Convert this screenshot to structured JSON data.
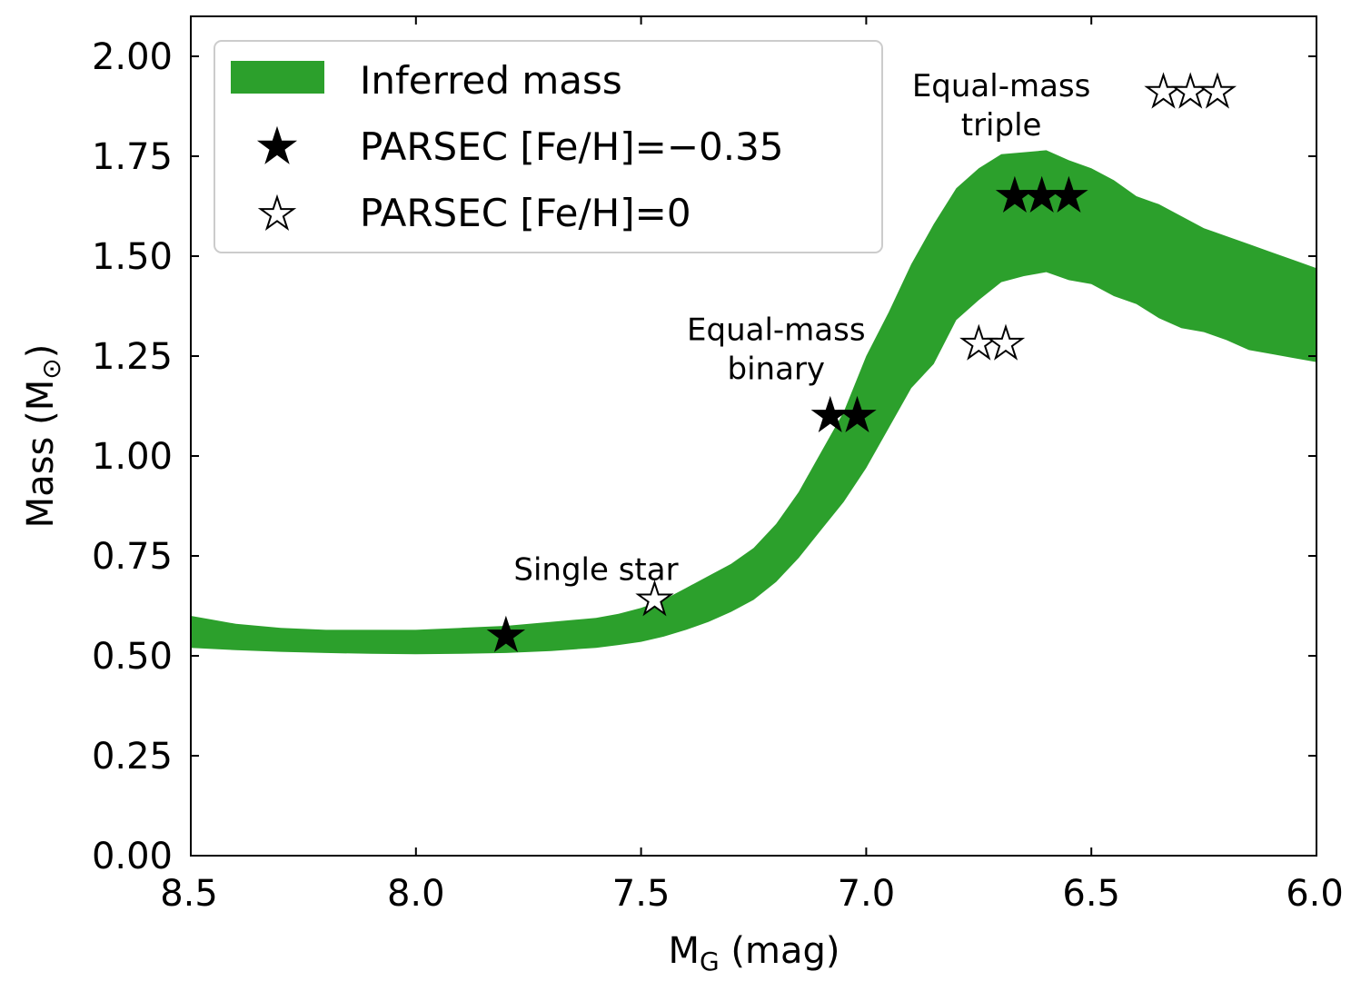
{
  "chart_data": {
    "type": "area",
    "xlabel_main": "M",
    "xlabel_sub": "G",
    "xlabel_rest": " (mag)",
    "ylabel_main": "Mass (M",
    "ylabel_sub": "⊙",
    "ylabel_close": ")",
    "xlim": [
      8.5,
      6.0
    ],
    "ylim": [
      0.0,
      2.1
    ],
    "xticks": [
      8.5,
      8.0,
      7.5,
      7.0,
      6.5,
      6.0
    ],
    "xtick_labels": [
      "8.5",
      "8.0",
      "7.5",
      "7.0",
      "6.5",
      "6.0"
    ],
    "yticks": [
      0.0,
      0.25,
      0.5,
      0.75,
      1.0,
      1.25,
      1.5,
      1.75,
      2.0
    ],
    "ytick_labels": [
      "0.00",
      "0.25",
      "0.50",
      "0.75",
      "1.00",
      "1.25",
      "1.50",
      "1.75",
      "2.00"
    ],
    "band": {
      "name": "Inferred mass",
      "color": "#2ca02c",
      "x": [
        8.5,
        8.45,
        8.4,
        8.3,
        8.2,
        8.1,
        8.0,
        7.9,
        7.8,
        7.7,
        7.6,
        7.55,
        7.5,
        7.45,
        7.4,
        7.35,
        7.3,
        7.25,
        7.2,
        7.15,
        7.1,
        7.05,
        7.0,
        6.95,
        6.9,
        6.85,
        6.8,
        6.75,
        6.7,
        6.65,
        6.6,
        6.55,
        6.5,
        6.45,
        6.4,
        6.35,
        6.3,
        6.25,
        6.2,
        6.15,
        6.1,
        6.05,
        6.0
      ],
      "upper": [
        0.6,
        0.59,
        0.58,
        0.57,
        0.565,
        0.565,
        0.565,
        0.57,
        0.575,
        0.585,
        0.595,
        0.605,
        0.62,
        0.64,
        0.67,
        0.7,
        0.73,
        0.77,
        0.83,
        0.91,
        1.01,
        1.11,
        1.25,
        1.36,
        1.48,
        1.58,
        1.67,
        1.72,
        1.755,
        1.76,
        1.765,
        1.74,
        1.72,
        1.69,
        1.65,
        1.63,
        1.6,
        1.57,
        1.55,
        1.53,
        1.51,
        1.49,
        1.47
      ],
      "lower": [
        0.52,
        0.517,
        0.514,
        0.51,
        0.507,
        0.505,
        0.504,
        0.505,
        0.507,
        0.512,
        0.52,
        0.527,
        0.535,
        0.548,
        0.565,
        0.585,
        0.61,
        0.64,
        0.685,
        0.745,
        0.815,
        0.885,
        0.97,
        1.07,
        1.17,
        1.23,
        1.34,
        1.39,
        1.435,
        1.45,
        1.46,
        1.44,
        1.43,
        1.4,
        1.38,
        1.345,
        1.32,
        1.31,
        1.29,
        1.265,
        1.255,
        1.245,
        1.235
      ]
    },
    "series": [
      {
        "name": "PARSEC [Fe/H]=−0.35",
        "marker": "filled-star",
        "x": [
          7.8,
          7.08,
          7.02,
          6.67,
          6.61,
          6.55
        ],
        "y": [
          0.55,
          1.1,
          1.1,
          1.65,
          1.65,
          1.65
        ]
      },
      {
        "name": "PARSEC [Fe/H]=0",
        "marker": "open-star",
        "x": [
          7.47,
          6.75,
          6.69,
          6.34,
          6.28,
          6.22
        ],
        "y": [
          0.64,
          1.28,
          1.28,
          1.91,
          1.91,
          1.91
        ]
      }
    ],
    "annotations": [
      {
        "lines": [
          "Single star"
        ],
        "x": 7.6,
        "y": 0.69
      },
      {
        "lines": [
          "Equal-mass",
          "binary"
        ],
        "x": 7.2,
        "y": 1.29
      },
      {
        "lines": [
          "Equal-mass",
          "triple"
        ],
        "x": 6.7,
        "y": 1.9
      }
    ],
    "legend": {
      "position": "top-left",
      "entries": [
        "Inferred mass",
        "PARSEC [Fe/H]=−0.35",
        "PARSEC [Fe/H]=0"
      ]
    }
  }
}
